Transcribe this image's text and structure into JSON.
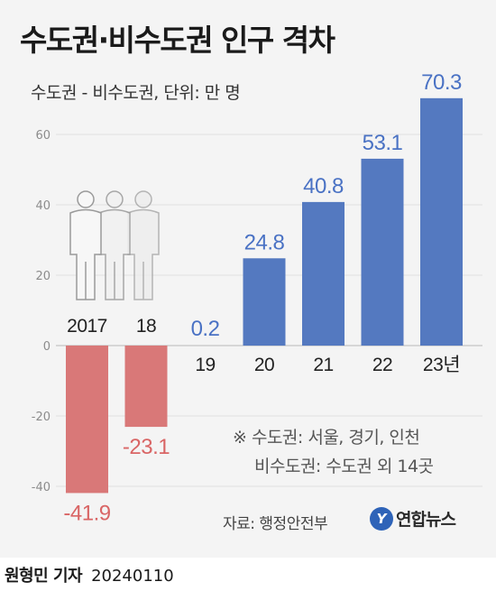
{
  "header": {
    "title": "수도권·비수도권 인구 격차",
    "subtitle": "수도권 - 비수도권, 단위: 만 명"
  },
  "chart_data": {
    "type": "bar",
    "categories": [
      "2017",
      "18",
      "19",
      "20",
      "21",
      "22",
      "23년"
    ],
    "values": [
      -41.9,
      -23.1,
      0.2,
      24.8,
      40.8,
      53.1,
      70.3
    ],
    "value_labels": [
      "-41.9",
      "-23.1",
      "0.2",
      "24.8",
      "40.8",
      "53.1",
      "70.3"
    ],
    "ylim": [
      -40,
      60
    ],
    "yticks": [
      "60",
      "40",
      "20",
      "0",
      "-20",
      "-40"
    ],
    "grid": true,
    "colors": {
      "positive": "#5479c0",
      "negative": "#d97878",
      "positive_label": "#4a72c4",
      "negative_label": "#d96565"
    }
  },
  "notes": {
    "line1": "※ 수도권: 서울, 경기, 인천",
    "line2": "비수도권: 수도권 외 14곳"
  },
  "source": "자료: 행정안전부",
  "logo": {
    "mark": "Y",
    "text": "연합뉴스"
  },
  "footer": {
    "author": "원형민 기자",
    "date": "20240110"
  }
}
